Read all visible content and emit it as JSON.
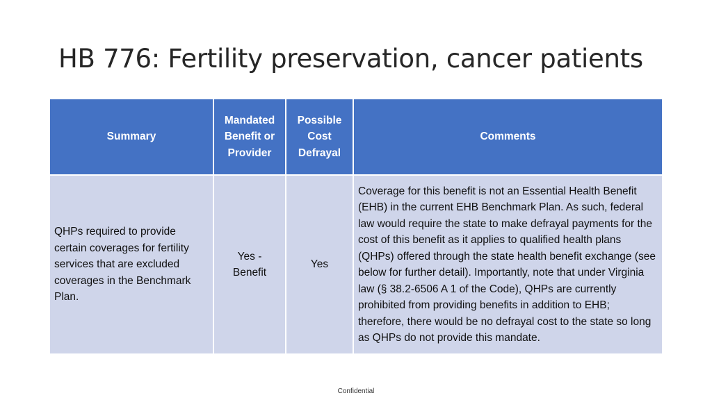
{
  "slide": {
    "title": "HB 776: Fertility preservation, cancer patients",
    "footer": "Confidential"
  },
  "table": {
    "headers": {
      "summary": "Summary",
      "mandated": "Mandated Benefit or Provider",
      "cost": "Possible Cost Defrayal",
      "comments": "Comments"
    },
    "row": {
      "summary": "QHPs required to provide certain coverages for fertility services that are excluded coverages in the Benchmark Plan.",
      "mandated": "Yes - Benefit",
      "cost": "Yes",
      "comments": "Coverage for this benefit is not an Essential Health Benefit (EHB) in the current EHB Benchmark Plan.  As such, federal law would require the state to make defrayal payments for the cost of this benefit as it applies to qualified health plans (QHPs) offered through the state health  benefit exchange (see below for further detail). Importantly, note that under Virginia law (§ 38.2-6506 A 1 of the Code), QHPs are currently prohibited from providing benefits in addition to EHB; therefore, there would be no defrayal cost to the state so long as QHPs do not provide this mandate."
    }
  },
  "colors": {
    "header_bg": "#4472c4",
    "row_bg": "#cfd5ea"
  }
}
